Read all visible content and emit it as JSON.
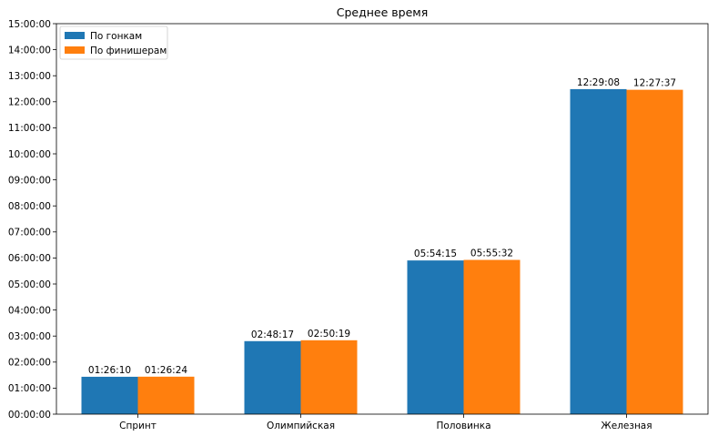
{
  "chart_data": {
    "type": "bar",
    "title": "Среднее время",
    "xlabel": "",
    "ylabel": "",
    "categories": [
      "Спринт",
      "Олимпийская",
      "Половинка",
      "Железная"
    ],
    "series": [
      {
        "name": "По гонкам",
        "color": "#1f77b4",
        "values": [
          "01:26:10",
          "02:48:17",
          "05:54:15",
          "12:29:08"
        ]
      },
      {
        "name": "По финишерам",
        "color": "#ff7f0e",
        "values": [
          "01:26:24",
          "02:50:19",
          "05:55:32",
          "12:27:37"
        ]
      }
    ],
    "ylim": [
      "00:00:00",
      "15:00:00"
    ],
    "yticks": [
      "00:00:00",
      "01:00:00",
      "02:00:00",
      "03:00:00",
      "04:00:00",
      "05:00:00",
      "06:00:00",
      "07:00:00",
      "08:00:00",
      "09:00:00",
      "10:00:00",
      "11:00:00",
      "12:00:00",
      "13:00:00",
      "14:00:00",
      "15:00:00"
    ],
    "grid": false,
    "legend_position": "top-left"
  }
}
